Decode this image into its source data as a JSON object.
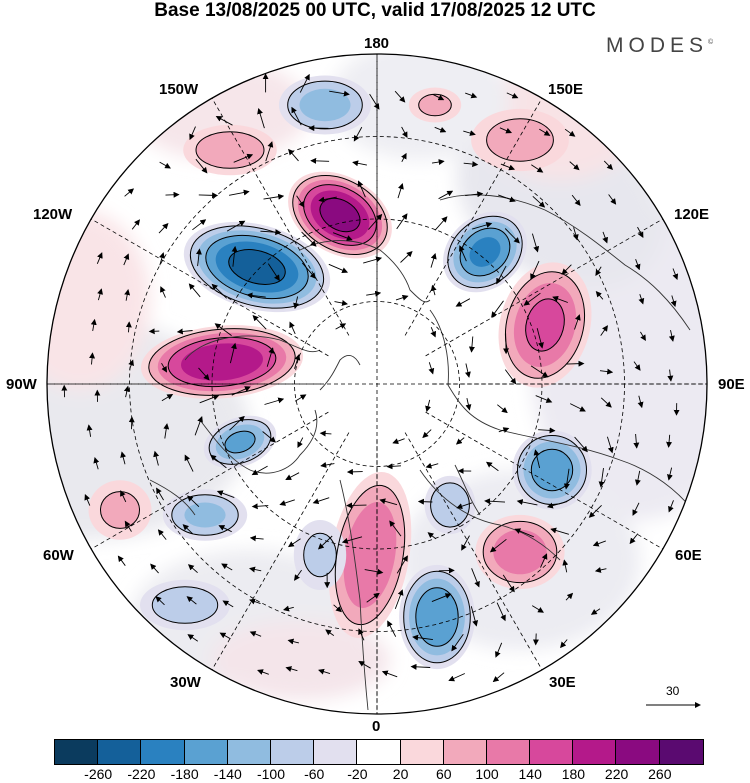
{
  "title": "Base 13/08/2025 00 UTC, valid 17/08/2025 12 UTC",
  "brand": "MODES",
  "brand_mark": "©",
  "longitude_labels": {
    "lon_180": "180",
    "lon_150w": "150W",
    "lon_150e": "150E",
    "lon_120w": "120W",
    "lon_120e": "120E",
    "lon_90w": "90W",
    "lon_90e": "90E",
    "lon_60w": "60W",
    "lon_60e": "60E",
    "lon_30w": "30W",
    "lon_30e": "30E",
    "lon_0": "0"
  },
  "reference_vector": {
    "label": "30"
  },
  "colorbar": {
    "colors": [
      "#0b3b5e",
      "#14609a",
      "#2a81c0",
      "#5aa1d2",
      "#90bce0",
      "#bccde9",
      "#e2e0ef",
      "#ffffff",
      "#fad8dc",
      "#f2a9bb",
      "#e879a8",
      "#d7489c",
      "#b4198a",
      "#8a0a80",
      "#5a0a70"
    ],
    "ticks": [
      "-260",
      "-220",
      "-180",
      "-140",
      "-100",
      "-60",
      "-20",
      "20",
      "60",
      "100",
      "140",
      "180",
      "220",
      "260"
    ]
  },
  "anomaly_centers": [
    {
      "sign": "negative",
      "value": -230
    },
    {
      "sign": "positive",
      "value": 230
    },
    {
      "sign": "positive",
      "value": 210
    },
    {
      "sign": "negative",
      "value": -180
    },
    {
      "sign": "negative",
      "value": -140
    },
    {
      "sign": "positive",
      "value": 140
    },
    {
      "sign": "negative",
      "value": -160
    },
    {
      "sign": "positive",
      "value": 130
    },
    {
      "sign": "positive",
      "value": 120
    },
    {
      "sign": "negative",
      "value": -170
    },
    {
      "sign": "negative",
      "value": -110
    },
    {
      "sign": "positive",
      "value": 80
    },
    {
      "sign": "negative",
      "value": -100
    },
    {
      "sign": "negative",
      "value": -90
    },
    {
      "sign": "positive",
      "value": 60
    },
    {
      "sign": "negative",
      "value": -80
    },
    {
      "sign": "positive",
      "value": 70
    },
    {
      "sign": "negative",
      "value": -60
    },
    {
      "sign": "positive",
      "value": 60
    }
  ]
}
